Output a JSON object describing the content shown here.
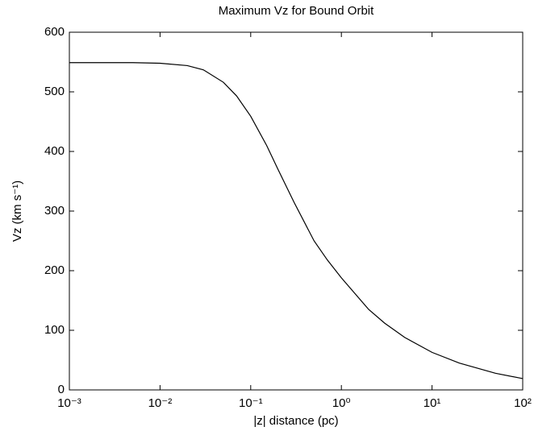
{
  "chart_data": {
    "type": "line",
    "title": "Maximum Vz for Bound Orbit",
    "x_label": "|z| distance (pc)",
    "y_label": "Vz (km s⁻¹)",
    "x_scale": "log",
    "x": [
      0.001,
      0.005,
      0.01,
      0.02,
      0.03,
      0.05,
      0.07,
      0.1,
      0.15,
      0.2,
      0.3,
      0.5,
      0.7,
      1,
      2,
      3,
      5,
      10,
      20,
      50,
      100
    ],
    "series": [
      {
        "name": "Vz",
        "color": "#000000",
        "values": [
          549,
          549,
          548,
          544,
          537,
          516,
          493,
          459,
          410,
          370,
          315,
          250,
          218,
          188,
          135,
          112,
          88,
          63,
          45,
          28,
          19
        ]
      }
    ],
    "xlim": [
      0.001,
      100
    ],
    "xticks": [
      {
        "value": 0.001,
        "label": "10⁻³"
      },
      {
        "value": 0.01,
        "label": "10⁻²"
      },
      {
        "value": 0.1,
        "label": "10⁻¹"
      },
      {
        "value": 1,
        "label": "10⁰"
      },
      {
        "value": 10,
        "label": "10¹"
      },
      {
        "value": 100,
        "label": "10²"
      }
    ],
    "ylim": [
      0,
      600
    ],
    "yticks": [
      0,
      100,
      200,
      300,
      400,
      500,
      600
    ],
    "grid": false
  }
}
